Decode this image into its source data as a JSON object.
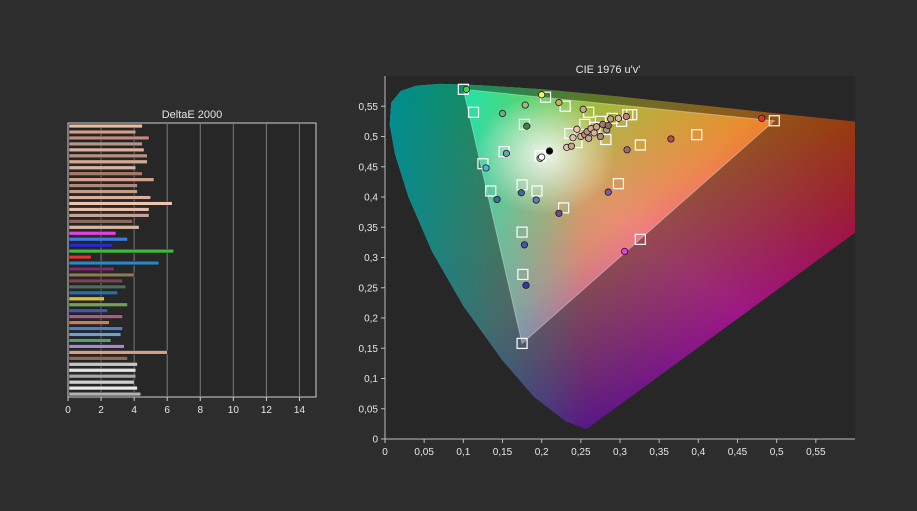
{
  "chart_data": [
    {
      "type": "bar",
      "orientation": "horizontal",
      "title": "DeltaE 2000",
      "xlim": [
        0,
        15
      ],
      "x_ticks": [
        "0",
        "2",
        "4",
        "6",
        "8",
        "10",
        "12",
        "14"
      ],
      "grid": true,
      "bars": [
        {
          "value": 4.5,
          "color": "#e4bfa6"
        },
        {
          "value": 4.1,
          "color": "#d49f86"
        },
        {
          "value": 4.9,
          "color": "#c48c7e"
        },
        {
          "value": 4.5,
          "color": "#b6968b"
        },
        {
          "value": 4.6,
          "color": "#d9b19f"
        },
        {
          "value": 4.8,
          "color": "#b98f7e"
        },
        {
          "value": 4.8,
          "color": "#d3aa8e"
        },
        {
          "value": 4.1,
          "color": "#d5b3a2"
        },
        {
          "value": 4.5,
          "color": "#a57a69"
        },
        {
          "value": 5.2,
          "color": "#d2a08c"
        },
        {
          "value": 4.2,
          "color": "#b08a7a"
        },
        {
          "value": 4.2,
          "color": "#c29e8a"
        },
        {
          "value": 5.0,
          "color": "#dab1a0"
        },
        {
          "value": 6.3,
          "color": "#f0c3ac"
        },
        {
          "value": 4.9,
          "color": "#e4bda9"
        },
        {
          "value": 4.9,
          "color": "#c7a396"
        },
        {
          "value": 3.9,
          "color": "#8a6a60"
        },
        {
          "value": 4.3,
          "color": "#d6b7a0"
        },
        {
          "value": 2.9,
          "color": "#e33fe3"
        },
        {
          "value": 3.6,
          "color": "#3a7be0"
        },
        {
          "value": 2.7,
          "color": "#2a2ad8"
        },
        {
          "value": 6.4,
          "color": "#41b93c"
        },
        {
          "value": 1.4,
          "color": "#e23434"
        },
        {
          "value": 5.5,
          "color": "#2a88c9"
        },
        {
          "value": 2.8,
          "color": "#7c2e6e"
        },
        {
          "value": 4.0,
          "color": "#8e7b55"
        },
        {
          "value": 3.3,
          "color": "#7d4454"
        },
        {
          "value": 3.5,
          "color": "#4b6e60"
        },
        {
          "value": 3.0,
          "color": "#2c6fa8"
        },
        {
          "value": 2.2,
          "color": "#d2c23f"
        },
        {
          "value": 3.6,
          "color": "#75a05a"
        },
        {
          "value": 2.4,
          "color": "#4a55a8"
        },
        {
          "value": 3.3,
          "color": "#a56080"
        },
        {
          "value": 2.5,
          "color": "#c38060"
        },
        {
          "value": 3.3,
          "color": "#4f7ec8"
        },
        {
          "value": 3.2,
          "color": "#6ea0d0"
        },
        {
          "value": 2.6,
          "color": "#5b9a7a"
        },
        {
          "value": 3.4,
          "color": "#a48bd0"
        },
        {
          "value": 6.0,
          "color": "#d79d85"
        },
        {
          "value": 3.6,
          "color": "#8f6a5a"
        },
        {
          "value": 4.2,
          "color": "#c6c6c6"
        },
        {
          "value": 4.1,
          "color": "#e2e2e2"
        },
        {
          "value": 4.1,
          "color": "#a6a6a6"
        },
        {
          "value": 4.0,
          "color": "#cfcfcf"
        },
        {
          "value": 4.2,
          "color": "#e9e9e9"
        },
        {
          "value": 4.4,
          "color": "#b2b2b2"
        }
      ]
    },
    {
      "type": "scatter",
      "title": "CIE 1976 u'v'",
      "xlim": [
        0,
        0.6
      ],
      "ylim": [
        0,
        0.6
      ],
      "x_ticks": [
        "0",
        "0,05",
        "0,1",
        "0,15",
        "0,2",
        "0,25",
        "0,3",
        "0,35",
        "0,4",
        "0,45",
        "0,5",
        "0,55"
      ],
      "y_ticks": [
        "0",
        "0,05",
        "0,1",
        "0,15",
        "0,2",
        "0,25",
        "0,3",
        "0,35",
        "0,4",
        "0,45",
        "0,5",
        "0,55"
      ],
      "gamut_triangle": {
        "red": [
          0.497,
          0.526
        ],
        "green": [
          0.1,
          0.578
        ],
        "blue": [
          0.175,
          0.158
        ]
      },
      "targets": [
        [
          0.1,
          0.578
        ],
        [
          0.113,
          0.54
        ],
        [
          0.125,
          0.455
        ],
        [
          0.135,
          0.41
        ],
        [
          0.152,
          0.475
        ],
        [
          0.175,
          0.42
        ],
        [
          0.175,
          0.342
        ],
        [
          0.176,
          0.272
        ],
        [
          0.175,
          0.158
        ],
        [
          0.178,
          0.52
        ],
        [
          0.194,
          0.41
        ],
        [
          0.198,
          0.468
        ],
        [
          0.205,
          0.565
        ],
        [
          0.228,
          0.382
        ],
        [
          0.23,
          0.55
        ],
        [
          0.236,
          0.505
        ],
        [
          0.245,
          0.49
        ],
        [
          0.255,
          0.52
        ],
        [
          0.26,
          0.54
        ],
        [
          0.268,
          0.515
        ],
        [
          0.275,
          0.525
        ],
        [
          0.282,
          0.495
        ],
        [
          0.29,
          0.53
        ],
        [
          0.298,
          0.422
        ],
        [
          0.302,
          0.525
        ],
        [
          0.31,
          0.536
        ],
        [
          0.315,
          0.536
        ],
        [
          0.326,
          0.486
        ],
        [
          0.326,
          0.33
        ],
        [
          0.398,
          0.503
        ],
        [
          0.497,
          0.526
        ]
      ],
      "measured": [
        {
          "u": 0.104,
          "v": 0.578,
          "c": "#4ccf4c"
        },
        {
          "u": 0.15,
          "v": 0.538,
          "c": "#7aa68a"
        },
        {
          "u": 0.179,
          "v": 0.552,
          "c": "#9bb97b"
        },
        {
          "u": 0.181,
          "v": 0.517,
          "c": "#4e7a4e"
        },
        {
          "u": 0.2,
          "v": 0.569,
          "c": "#f2f26b"
        },
        {
          "u": 0.222,
          "v": 0.556,
          "c": "#c8b05a"
        },
        {
          "u": 0.253,
          "v": 0.545,
          "c": "#c8a87a"
        },
        {
          "u": 0.155,
          "v": 0.472,
          "c": "#6aa0b0"
        },
        {
          "u": 0.129,
          "v": 0.448,
          "c": "#4fb8d0"
        },
        {
          "u": 0.143,
          "v": 0.396,
          "c": "#3a6fa0"
        },
        {
          "u": 0.174,
          "v": 0.407,
          "c": "#3e6a9a"
        },
        {
          "u": 0.193,
          "v": 0.395,
          "c": "#5f7fb0"
        },
        {
          "u": 0.178,
          "v": 0.321,
          "c": "#4a55a8"
        },
        {
          "u": 0.18,
          "v": 0.254,
          "c": "#3636b0"
        },
        {
          "u": 0.198,
          "v": 0.464,
          "c": "#c6c6c6"
        },
        {
          "u": 0.2,
          "v": 0.466,
          "c": "#ffffff"
        },
        {
          "u": 0.21,
          "v": 0.476,
          "c": "#000000"
        },
        {
          "u": 0.222,
          "v": 0.373,
          "c": "#6a4a8a"
        },
        {
          "u": 0.232,
          "v": 0.482,
          "c": "#e2c0b0"
        },
        {
          "u": 0.238,
          "v": 0.484,
          "c": "#d49f86"
        },
        {
          "u": 0.24,
          "v": 0.498,
          "c": "#e4bfa6"
        },
        {
          "u": 0.245,
          "v": 0.512,
          "c": "#f0c3ac"
        },
        {
          "u": 0.25,
          "v": 0.5,
          "c": "#d9b19f"
        },
        {
          "u": 0.255,
          "v": 0.503,
          "c": "#b98f7e"
        },
        {
          "u": 0.258,
          "v": 0.508,
          "c": "#c48c7e"
        },
        {
          "u": 0.263,
          "v": 0.513,
          "c": "#d3aa8e"
        },
        {
          "u": 0.26,
          "v": 0.497,
          "c": "#c7a396"
        },
        {
          "u": 0.267,
          "v": 0.506,
          "c": "#dab1a0"
        },
        {
          "u": 0.27,
          "v": 0.516,
          "c": "#d2a08c"
        },
        {
          "u": 0.275,
          "v": 0.5,
          "c": "#b08a7a"
        },
        {
          "u": 0.278,
          "v": 0.52,
          "c": "#a57a69"
        },
        {
          "u": 0.283,
          "v": 0.511,
          "c": "#b6968b"
        },
        {
          "u": 0.288,
          "v": 0.529,
          "c": "#c29e8a"
        },
        {
          "u": 0.285,
          "v": 0.518,
          "c": "#8a6a60"
        },
        {
          "u": 0.298,
          "v": 0.53,
          "c": "#d6b7a0"
        },
        {
          "u": 0.308,
          "v": 0.533,
          "c": "#c98070"
        },
        {
          "u": 0.309,
          "v": 0.478,
          "c": "#a56080"
        },
        {
          "u": 0.285,
          "v": 0.408,
          "c": "#7d5aa0"
        },
        {
          "u": 0.306,
          "v": 0.31,
          "c": "#e33fe3"
        },
        {
          "u": 0.365,
          "v": 0.496,
          "c": "#b84a5a"
        },
        {
          "u": 0.481,
          "v": 0.53,
          "c": "#e23434"
        }
      ]
    }
  ]
}
